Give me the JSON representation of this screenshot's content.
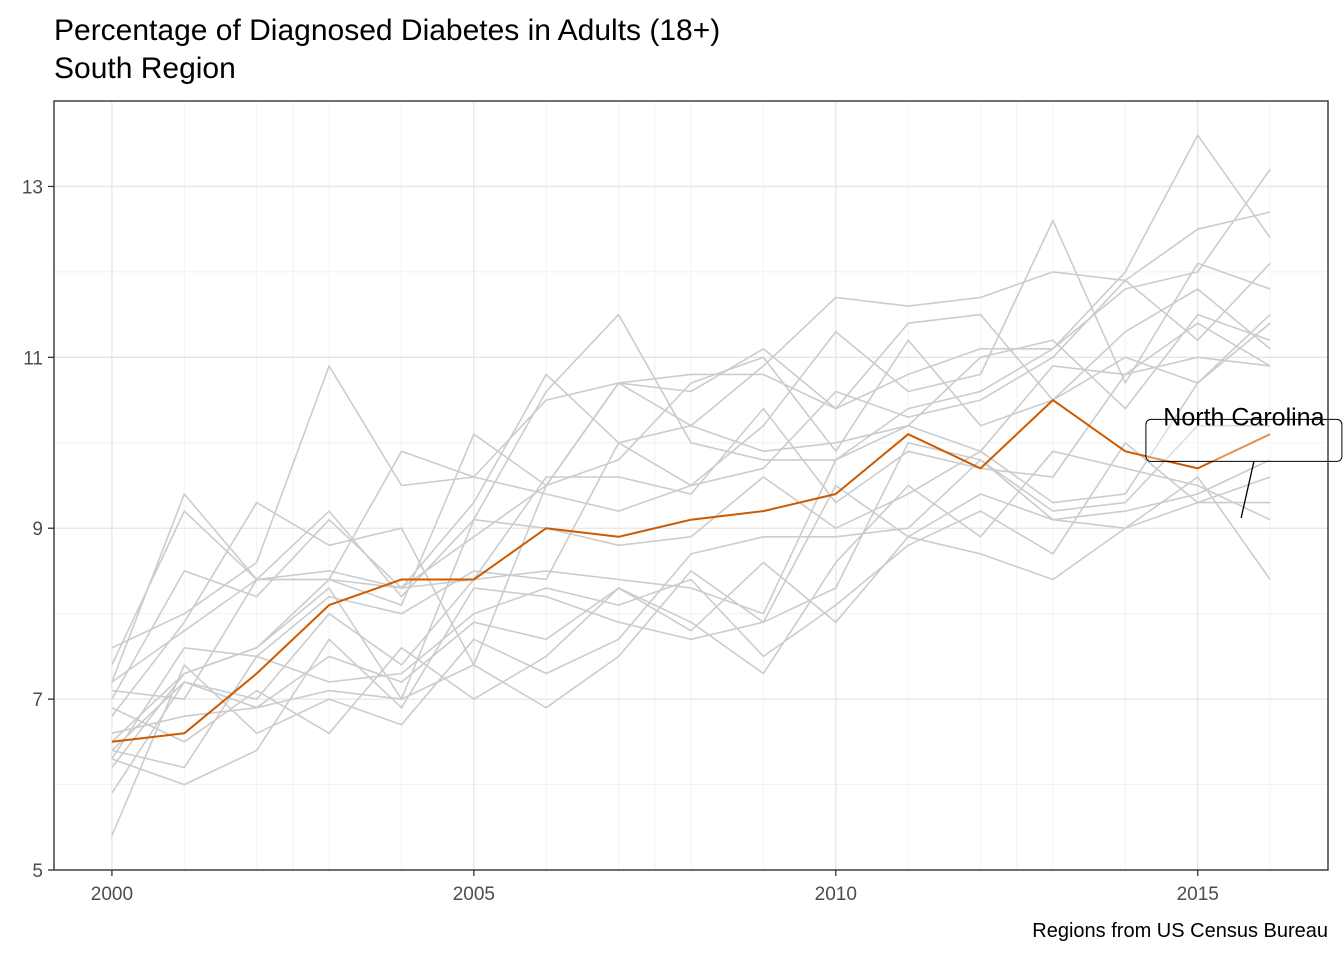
{
  "chart_data": {
    "type": "line",
    "title": "Percentage of Diagnosed Diabetes in Adults (18+)",
    "subtitle": "South Region",
    "caption": "Regions from US Census Bureau",
    "xlabel": "",
    "ylabel": "",
    "xlim": [
      1999.2,
      2016.8
    ],
    "ylim": [
      5,
      14
    ],
    "x_ticks": [
      2000,
      2005,
      2010,
      2015
    ],
    "y_ticks": [
      5,
      7,
      9,
      11,
      13
    ],
    "grid": true,
    "legend": "none",
    "x": [
      2000,
      2001,
      2002,
      2003,
      2004,
      2005,
      2006,
      2007,
      2008,
      2009,
      2010,
      2011,
      2012,
      2013,
      2014,
      2015,
      2016
    ],
    "background_color": "#cccccc",
    "highlight_color": "#cc5a00",
    "highlight": {
      "name": "North Carolina",
      "values": [
        6.5,
        6.6,
        7.3,
        8.1,
        8.4,
        8.4,
        9.0,
        8.9,
        9.1,
        9.2,
        9.4,
        10.1,
        9.7,
        10.5,
        9.9,
        9.7,
        10.1
      ]
    },
    "annotation": {
      "text": "North Carolina",
      "x": 2015.5,
      "y": 9.7
    },
    "series": [
      {
        "values": [
          7.2,
          9.4,
          8.4,
          9.2,
          8.2,
          9.1,
          10.6,
          11.5,
          10.0,
          9.8,
          9.8,
          10.4,
          10.6,
          11.1,
          12.0,
          13.6,
          12.4
        ]
      },
      {
        "values": [
          7.6,
          8.0,
          8.6,
          10.9,
          9.5,
          9.6,
          10.5,
          10.7,
          10.2,
          10.9,
          11.7,
          11.6,
          11.7,
          12.0,
          11.9,
          12.5,
          12.7
        ]
      },
      {
        "values": [
          7.4,
          9.2,
          8.4,
          8.4,
          8.1,
          10.1,
          9.5,
          10.7,
          10.6,
          11.1,
          10.4,
          10.8,
          11.1,
          11.1,
          11.8,
          12.0,
          13.2
        ]
      },
      {
        "values": [
          7.0,
          8.5,
          8.2,
          9.1,
          8.3,
          9.3,
          10.8,
          10.0,
          9.5,
          10.2,
          11.3,
          10.6,
          10.8,
          12.6,
          10.7,
          12.1,
          11.8
        ]
      },
      {
        "values": [
          6.8,
          7.9,
          9.3,
          8.8,
          9.0,
          7.4,
          9.5,
          10.7,
          10.8,
          10.8,
          10.4,
          11.4,
          11.5,
          10.5,
          11.3,
          11.8,
          11.1
        ]
      },
      {
        "values": [
          7.2,
          7.8,
          8.4,
          8.4,
          9.9,
          9.6,
          9.4,
          9.2,
          9.5,
          9.7,
          10.6,
          10.3,
          10.5,
          11.0,
          11.9,
          11.2,
          12.1
        ]
      },
      {
        "values": [
          6.5,
          7.3,
          7.6,
          8.4,
          8.3,
          8.9,
          9.5,
          9.8,
          10.7,
          11.0,
          9.9,
          11.2,
          10.2,
          10.5,
          11.0,
          10.7,
          11.4
        ]
      },
      {
        "values": [
          6.3,
          7.6,
          7.5,
          8.2,
          8.0,
          8.5,
          8.4,
          10.0,
          10.2,
          9.9,
          10.0,
          10.2,
          11.0,
          11.2,
          10.4,
          11.5,
          11.2
        ]
      },
      {
        "values": [
          6.4,
          7.2,
          7.0,
          8.0,
          7.4,
          8.4,
          9.6,
          9.6,
          9.4,
          10.4,
          9.3,
          9.9,
          9.7,
          9.6,
          10.8,
          11.0,
          10.9
        ]
      },
      {
        "values": [
          7.1,
          7.0,
          8.4,
          8.5,
          8.3,
          8.4,
          8.5,
          8.4,
          8.3,
          8.0,
          9.8,
          10.2,
          9.9,
          10.9,
          10.8,
          11.4,
          10.9
        ]
      },
      {
        "values": [
          6.2,
          7.3,
          7.6,
          8.3,
          7.0,
          9.1,
          9.0,
          8.8,
          8.9,
          9.6,
          9.0,
          9.4,
          9.9,
          9.3,
          9.4,
          10.7,
          11.5
        ]
      },
      {
        "values": [
          5.9,
          7.2,
          6.9,
          7.5,
          7.2,
          7.9,
          7.7,
          8.3,
          7.9,
          7.3,
          8.6,
          9.5,
          8.9,
          9.9,
          9.7,
          9.5,
          9.1
        ]
      },
      {
        "values": [
          6.3,
          6.0,
          6.4,
          7.7,
          6.9,
          8.3,
          8.2,
          7.9,
          7.7,
          7.9,
          8.3,
          10.0,
          9.8,
          9.2,
          9.3,
          10.2,
          10.2
        ]
      },
      {
        "values": [
          6.4,
          6.2,
          7.5,
          7.2,
          7.3,
          8.0,
          8.3,
          8.1,
          8.4,
          7.5,
          8.1,
          8.8,
          9.2,
          8.7,
          10.0,
          9.3,
          9.3
        ]
      },
      {
        "values": [
          5.4,
          7.4,
          6.6,
          7.0,
          6.7,
          7.7,
          7.3,
          7.7,
          8.7,
          8.9,
          8.9,
          9.0,
          9.8,
          9.1,
          9.2,
          9.4,
          9.8
        ]
      },
      {
        "values": [
          6.9,
          6.5,
          7.1,
          6.6,
          7.6,
          7.0,
          7.5,
          8.3,
          7.8,
          8.6,
          7.9,
          8.9,
          8.7,
          8.4,
          9.0,
          9.6,
          8.4
        ]
      },
      {
        "values": [
          6.6,
          6.8,
          6.9,
          7.1,
          7.0,
          7.4,
          6.9,
          7.5,
          8.5,
          7.9,
          9.5,
          8.9,
          9.4,
          9.1,
          9.0,
          9.3,
          9.6
        ]
      }
    ]
  }
}
